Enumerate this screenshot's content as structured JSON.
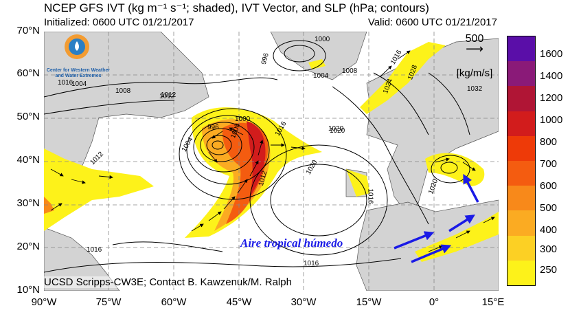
{
  "header": {
    "title": "NCEP GFS IVT (kg m⁻¹ s⁻¹; shaded), IVT Vector, and SLP (hPa; contours)",
    "initialized": "Initialized: 0600 UTC 01/21/2017",
    "valid": "Valid: 0600 UTC 01/21/2017"
  },
  "axes": {
    "lat_labels": [
      "70°N",
      "60°N",
      "50°N",
      "40°N",
      "30°N",
      "20°N",
      "10°N"
    ],
    "lon_labels": [
      "90°W",
      "75°W",
      "60°W",
      "45°W",
      "30°W",
      "15°W",
      "0°",
      "15°E"
    ]
  },
  "colorbar": {
    "levels": [
      "1600",
      "1400",
      "1200",
      "1000",
      "800",
      "700",
      "600",
      "500",
      "400",
      "300",
      "250"
    ],
    "colors": [
      "#5a0ea8",
      "#8a1a78",
      "#b01535",
      "#d21c1c",
      "#ee3a08",
      "#f45c10",
      "#f8891a",
      "#fbab22",
      "#fcd024",
      "#fdf21a",
      "#fefe10",
      "#ffffff"
    ]
  },
  "reference_vector": {
    "value": "500",
    "units": "[kg/m/s]"
  },
  "logo": {
    "line1": "Center for Western Weather",
    "line2": "and Water Extremes"
  },
  "credit": "UCSD Scripps-CW3E; Contact B. Kawzenuk/M. Ralph",
  "annotation": "Aire tropical húmedo",
  "contour_labels": [
    "1000",
    "996",
    "1004",
    "1008",
    "1012",
    "1016",
    "1020",
    "1024",
    "1028",
    "1032",
    "1004",
    "1008",
    "1016",
    "1012",
    "1008",
    "996",
    "1000",
    "1004",
    "1016",
    "1020",
    "1012",
    "1020",
    "1016",
    "1016",
    "1020",
    "1012",
    "1016"
  ]
}
